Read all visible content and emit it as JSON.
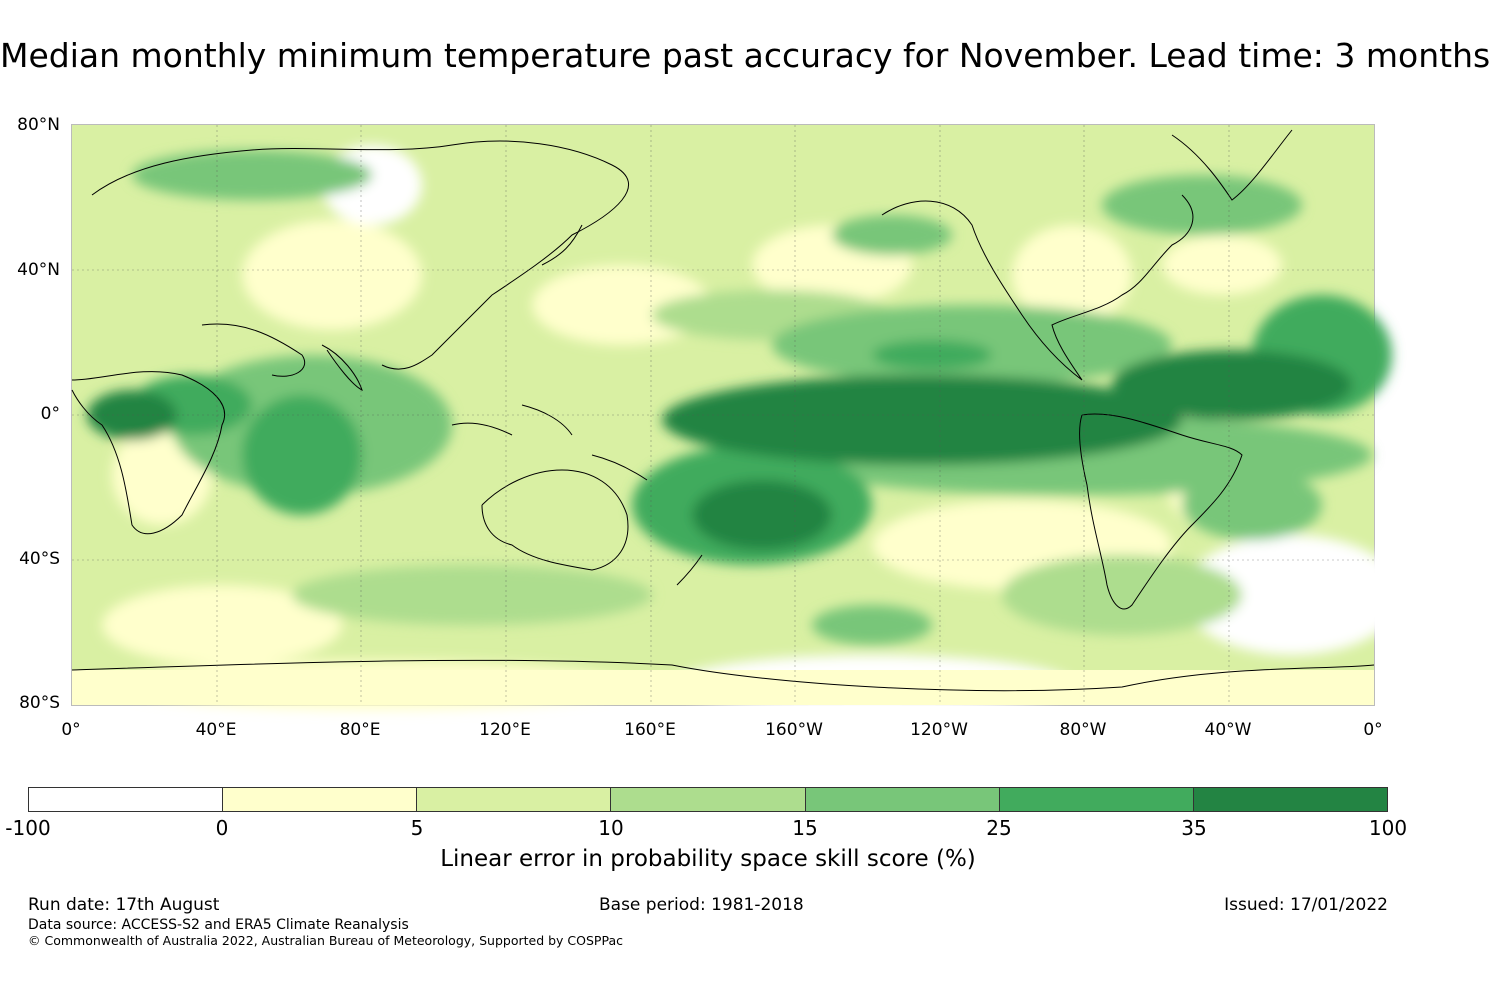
{
  "title": "Median monthly minimum temperature past accuracy for November. Lead time: 3 months",
  "map": {
    "lat_labels": [
      "80°N",
      "40°N",
      "0°",
      "40°S",
      "80°S"
    ],
    "lon_labels": [
      "0°",
      "40°E",
      "80°E",
      "120°E",
      "160°E",
      "160°W",
      "120°W",
      "80°W",
      "40°W",
      "0°"
    ]
  },
  "colorbar": {
    "ticks": [
      "-100",
      "0",
      "5",
      "10",
      "15",
      "25",
      "35",
      "100"
    ],
    "colors": [
      "#ffffff",
      "#ffffcc",
      "#d9f0a3",
      "#addd8e",
      "#78c679",
      "#41ab5d",
      "#238443"
    ],
    "label": "Linear error in probability space skill score (%)"
  },
  "footer": {
    "run_date": "Run date: 17th August",
    "base_period": "Base period: 1981-2018",
    "issued": "Issued: 17/01/2022",
    "data_source": "Data source: ACCESS-S2 and ERA5 Climate Reanalysis",
    "copyright": "© Commonwealth of Australia 2022, Australian Bureau of Meteorology, Supported by COSPPac"
  }
}
